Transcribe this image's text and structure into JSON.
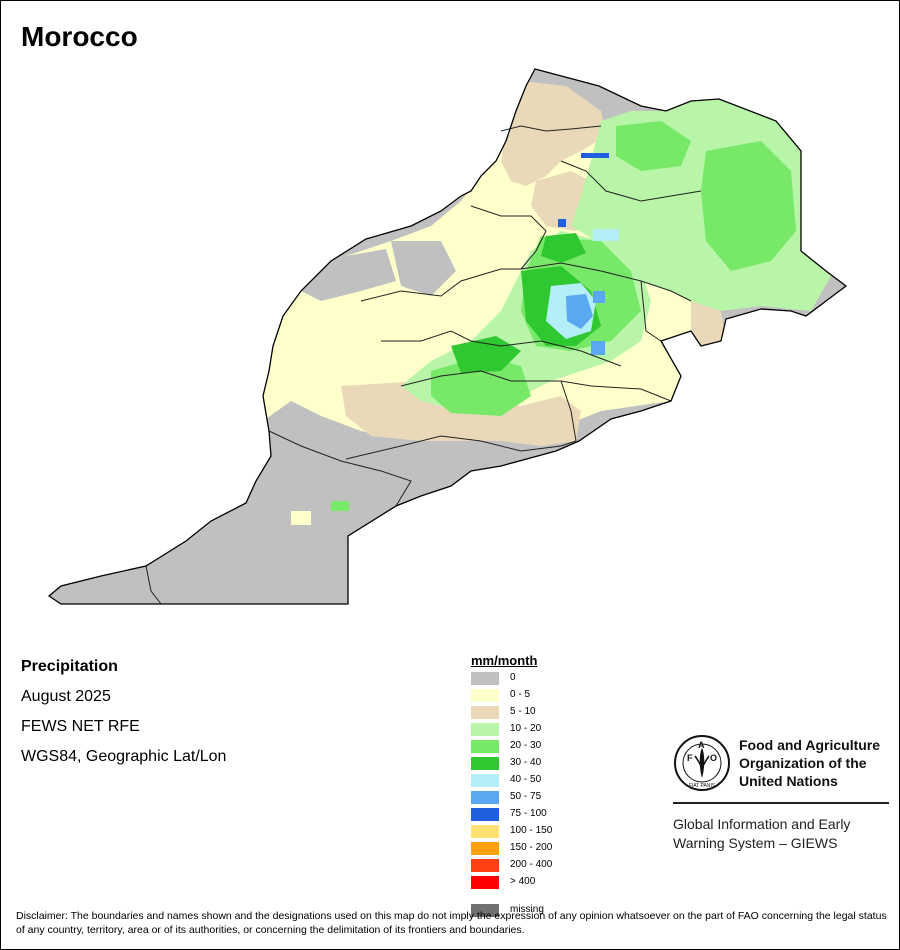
{
  "map": {
    "title": "Morocco",
    "variable": "Precipitation",
    "period": "August 2025",
    "source": "FEWS NET RFE",
    "projection": "WGS84, Geographic Lat/Lon"
  },
  "legend": {
    "unit": "mm/month",
    "classes": [
      {
        "label": "0",
        "color": "#c0c0c0"
      },
      {
        "label": "0 - 5",
        "color": "#ffffcc"
      },
      {
        "label": "5 - 10",
        "color": "#ead9b9"
      },
      {
        "label": "10 - 20",
        "color": "#b8f5a8"
      },
      {
        "label": "20 - 30",
        "color": "#78e868"
      },
      {
        "label": "30 - 40",
        "color": "#30c830"
      },
      {
        "label": "40 - 50",
        "color": "#b4eef6"
      },
      {
        "label": "50 - 75",
        "color": "#5aa8f0"
      },
      {
        "label": "75 - 100",
        "color": "#2060e0"
      },
      {
        "label": "100 - 150",
        "color": "#ffe070"
      },
      {
        "label": "150 - 200",
        "color": "#ffa010"
      },
      {
        "label": "200 - 400",
        "color": "#ff4010"
      },
      {
        "label": "> 400",
        "color": "#ff0000"
      }
    ],
    "missing": {
      "label": "missing",
      "color": "#707070"
    }
  },
  "organization": {
    "name_lines": [
      "Food and Agriculture",
      "Organization of the",
      "United Nations"
    ],
    "logo_letters": "FAO",
    "logo_motto": "FIAT PANIS",
    "program_lines": [
      "Global Information and Early",
      "Warning System – GIEWS"
    ]
  },
  "disclaimer": "Disclaimer: The boundaries and names shown and the designations used on this map do not imply the expression of any opinion whatsoever on the part of FAO concerning the legal status of any country, territory, area or of its authorities, or concerning the delimitation of its frontiers and boundaries."
}
